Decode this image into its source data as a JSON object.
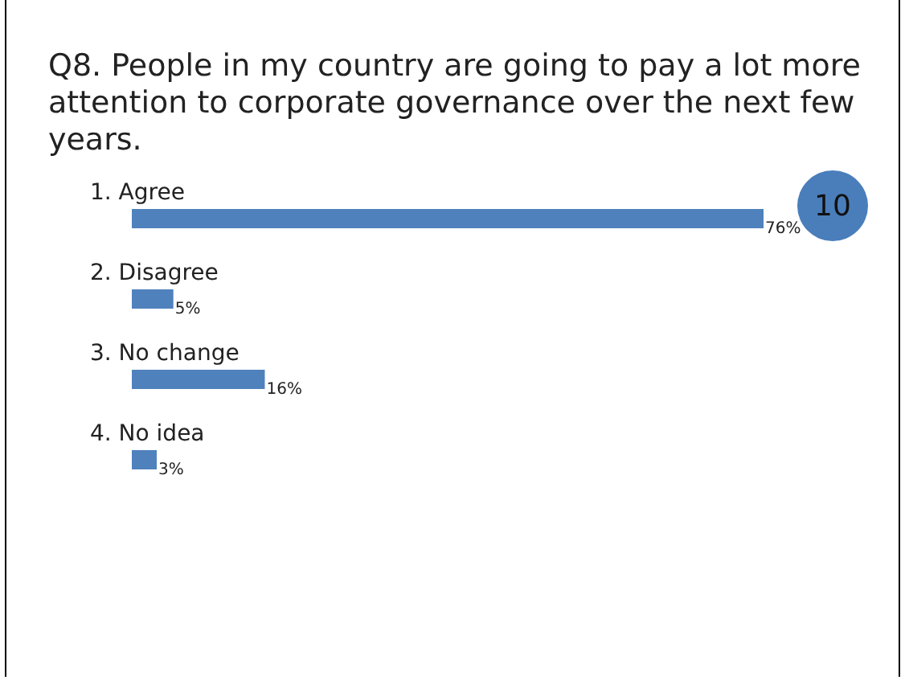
{
  "chart_data": {
    "type": "bar",
    "orientation": "horizontal",
    "title": "Q8. People in my country are going to pay a lot more attention to corporate governance over the next few years.",
    "categories": [
      "1.  Agree",
      "2.  Disagree",
      "3.  No change",
      "4.  No idea"
    ],
    "values": [
      76,
      5,
      16,
      3
    ],
    "value_labels": [
      "76%",
      "5%",
      "16%",
      "3%"
    ],
    "color": "#4f81bd",
    "annotations": [
      "10"
    ]
  }
}
